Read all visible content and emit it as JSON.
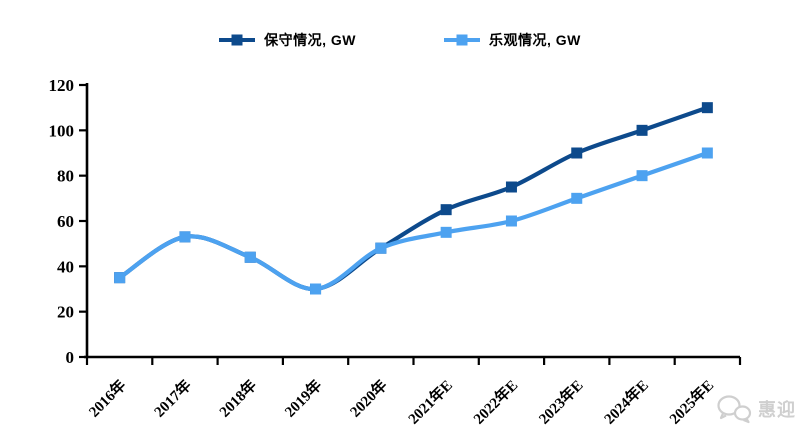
{
  "chart_data": {
    "type": "line",
    "title": "",
    "xlabel": "",
    "ylabel": "",
    "categories": [
      "2016年",
      "2017年",
      "2018年",
      "2019年",
      "2020年",
      "2021年E",
      "2022年E",
      "2023年E",
      "2024年E",
      "2025年E"
    ],
    "series": [
      {
        "name": "保守情况, GW",
        "color": "#0D4A8C",
        "values": [
          35,
          53,
          44,
          30,
          48,
          65,
          75,
          90,
          100,
          110
        ]
      },
      {
        "name": "乐观情况, GW",
        "color": "#4DA2F0",
        "values": [
          35,
          53,
          44,
          30,
          48,
          55,
          60,
          70,
          80,
          90
        ]
      }
    ],
    "ylim": [
      0,
      120
    ],
    "yticks": [
      0,
      20,
      40,
      60,
      80,
      100,
      120
    ],
    "grid": false,
    "legend_position": "top-center",
    "marker": "square",
    "line_style": "smooth",
    "axis_color": "#000000",
    "tick_label_color": "#000000"
  },
  "watermark": {
    "label": "惠迎",
    "icon": "wechat-icon",
    "color": "#cfcfcf"
  }
}
